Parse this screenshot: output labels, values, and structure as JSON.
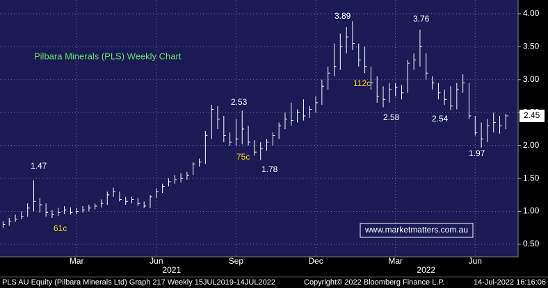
{
  "chart_data": {
    "type": "hlc",
    "title": "Pilbara Minerals (PLS) Weekly Chart",
    "high": [
      0.85,
      0.9,
      0.95,
      1.0,
      1.12,
      1.47,
      1.2,
      1.12,
      1.02,
      1.05,
      1.08,
      1.06,
      1.05,
      1.08,
      1.1,
      1.12,
      1.18,
      1.3,
      1.36,
      1.3,
      1.22,
      1.22,
      1.2,
      1.15,
      1.25,
      1.35,
      1.42,
      1.5,
      1.55,
      1.58,
      1.6,
      1.75,
      1.8,
      2.22,
      2.62,
      2.6,
      2.45,
      2.2,
      2.4,
      2.53,
      2.3,
      2.08,
      2.05,
      2.1,
      2.2,
      2.35,
      2.5,
      2.65,
      2.55,
      2.7,
      2.6,
      2.75,
      3.0,
      3.2,
      3.55,
      3.7,
      3.8,
      3.89,
      3.55,
      3.5,
      3.2,
      3.05,
      2.9,
      2.95,
      2.95,
      2.92,
      3.3,
      3.4,
      3.76,
      3.4,
      3.05,
      2.95,
      2.85,
      2.9,
      2.95,
      3.08,
      2.95,
      2.45,
      2.35,
      2.4,
      2.5,
      2.45,
      2.48
    ],
    "low": [
      0.75,
      0.78,
      0.84,
      0.88,
      0.92,
      1.0,
      0.98,
      0.92,
      0.9,
      0.93,
      0.96,
      0.95,
      0.96,
      0.98,
      1.0,
      1.03,
      1.06,
      1.1,
      1.22,
      1.15,
      1.1,
      1.12,
      1.08,
      1.05,
      1.05,
      1.2,
      1.28,
      1.38,
      1.42,
      1.44,
      1.48,
      1.55,
      1.68,
      1.72,
      2.1,
      2.25,
      2.05,
      2.0,
      2.0,
      2.02,
      2.0,
      1.85,
      1.78,
      1.92,
      2.0,
      2.1,
      2.25,
      2.3,
      2.35,
      2.38,
      2.42,
      2.5,
      2.62,
      2.85,
      3.05,
      3.15,
      3.4,
      3.45,
      3.2,
      3.1,
      2.85,
      2.65,
      2.58,
      2.65,
      2.75,
      2.7,
      2.8,
      3.15,
      3.2,
      3.0,
      2.85,
      2.7,
      2.62,
      2.54,
      2.55,
      2.8,
      2.4,
      2.15,
      1.97,
      2.05,
      2.2,
      2.18,
      2.25
    ],
    "close": [
      0.8,
      0.85,
      0.88,
      0.92,
      1.05,
      1.15,
      1.1,
      0.98,
      0.95,
      0.98,
      1.02,
      0.98,
      1.0,
      1.02,
      1.05,
      1.08,
      1.12,
      1.25,
      1.3,
      1.18,
      1.15,
      1.18,
      1.12,
      1.08,
      1.22,
      1.3,
      1.38,
      1.45,
      1.48,
      1.5,
      1.55,
      1.72,
      1.75,
      2.15,
      2.55,
      2.4,
      2.15,
      2.05,
      2.1,
      2.25,
      2.05,
      1.9,
      1.95,
      2.05,
      2.15,
      2.3,
      2.4,
      2.38,
      2.5,
      2.45,
      2.55,
      2.65,
      2.9,
      3.1,
      3.2,
      3.5,
      3.65,
      3.55,
      3.3,
      3.2,
      2.95,
      2.75,
      2.7,
      2.85,
      2.88,
      2.8,
      3.25,
      3.3,
      3.5,
      3.1,
      2.95,
      2.8,
      2.7,
      2.6,
      2.85,
      2.95,
      2.45,
      2.2,
      2.1,
      2.3,
      2.35,
      2.3,
      2.45
    ],
    "color": "#ffffff",
    "ylim": [
      0.31,
      4.21
    ],
    "yticks": [
      {
        "value": 0.5,
        "label": "0.50"
      },
      {
        "value": 1,
        "label": "1.00"
      },
      {
        "value": 1.5,
        "label": "1.50"
      },
      {
        "value": 2,
        "label": "2.00"
      },
      {
        "value": 2.5,
        "label": "2.50"
      },
      {
        "value": 3,
        "label": "3.00"
      },
      {
        "value": 3.5,
        "label": "3.50"
      },
      {
        "value": 4,
        "label": "4.00"
      }
    ],
    "xlim": [
      -0.5,
      84
    ],
    "xticks": [
      {
        "value": 12,
        "label": "Mar"
      },
      {
        "value": 25,
        "label": "Jun"
      },
      {
        "value": 38,
        "label": "Sep"
      },
      {
        "value": 51,
        "label": "Dec"
      },
      {
        "value": 64,
        "label": "Mar"
      },
      {
        "value": 77,
        "label": "Jun"
      }
    ],
    "year_labels": [
      {
        "value": 27.5,
        "label": "2021"
      },
      {
        "value": 69,
        "label": "2022"
      }
    ],
    "last_price": 2.45,
    "grid": true,
    "annotations": [
      {
        "text": "1.47",
        "color": "#ffffff"
      },
      {
        "text": "61c",
        "color": "#ffd700"
      },
      {
        "text": "2.53",
        "color": "#ffffff"
      },
      {
        "text": "75c",
        "color": "#ffd700"
      },
      {
        "text": "1.78",
        "color": "#ffffff"
      },
      {
        "text": "3.89",
        "color": "#ffffff"
      },
      {
        "text": "112c",
        "color": "#ffd700"
      },
      {
        "text": "2.58",
        "color": "#ffffff"
      },
      {
        "text": "3.76",
        "color": "#ffffff"
      },
      {
        "text": "2.54",
        "color": "#ffffff"
      },
      {
        "text": "1.97",
        "color": "#ffffff"
      }
    ],
    "watermark": "www.marketmatters.com.au",
    "footer": {
      "left": "PLS AU Equity (Pilbara Minerals Ltd) Graph 217  Weekly 15JUL2019-14JUL2022",
      "middle": "Copyright© 2022 Bloomberg Finance L.P.",
      "right": "14-Jul-2022 16:16:06"
    }
  }
}
